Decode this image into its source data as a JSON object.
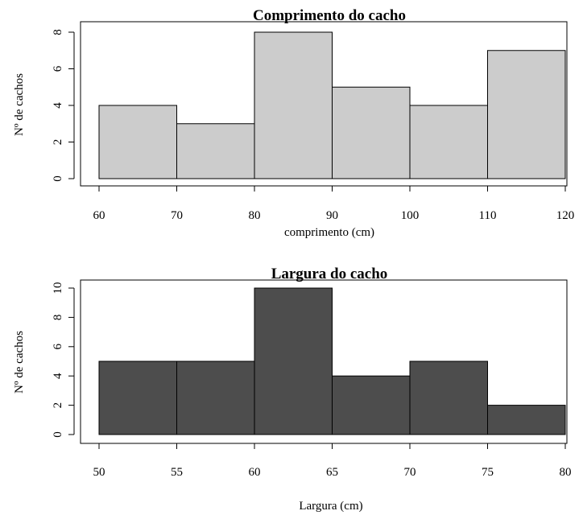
{
  "chart_data": [
    {
      "type": "bar",
      "title": "Comprimento do cacho",
      "xlabel": "comprimento (cm)",
      "ylabel": "Nº de cachos",
      "bin_edges": [
        60,
        70,
        80,
        90,
        100,
        110,
        120
      ],
      "values": [
        4,
        3,
        8,
        5,
        4,
        7
      ],
      "xlim": [
        60,
        120
      ],
      "ylim": [
        0,
        8
      ],
      "x_ticks": [
        60,
        70,
        80,
        90,
        100,
        110,
        120
      ],
      "y_ticks": [
        0,
        2,
        4,
        6,
        8
      ],
      "bar_color": "#cccccc",
      "grid": false
    },
    {
      "type": "bar",
      "title": "Largura do cacho",
      "xlabel": "Largura (cm)",
      "ylabel": "Nº de cachos",
      "bin_edges": [
        50,
        55,
        60,
        65,
        70,
        75,
        80
      ],
      "values": [
        5,
        5,
        10,
        4,
        5,
        2
      ],
      "xlim": [
        50,
        80
      ],
      "ylim": [
        0,
        10
      ],
      "x_ticks": [
        50,
        55,
        60,
        65,
        70,
        75,
        80
      ],
      "y_ticks": [
        0,
        2,
        4,
        6,
        8,
        10
      ],
      "bar_color": "#4d4d4d",
      "grid": false
    }
  ]
}
